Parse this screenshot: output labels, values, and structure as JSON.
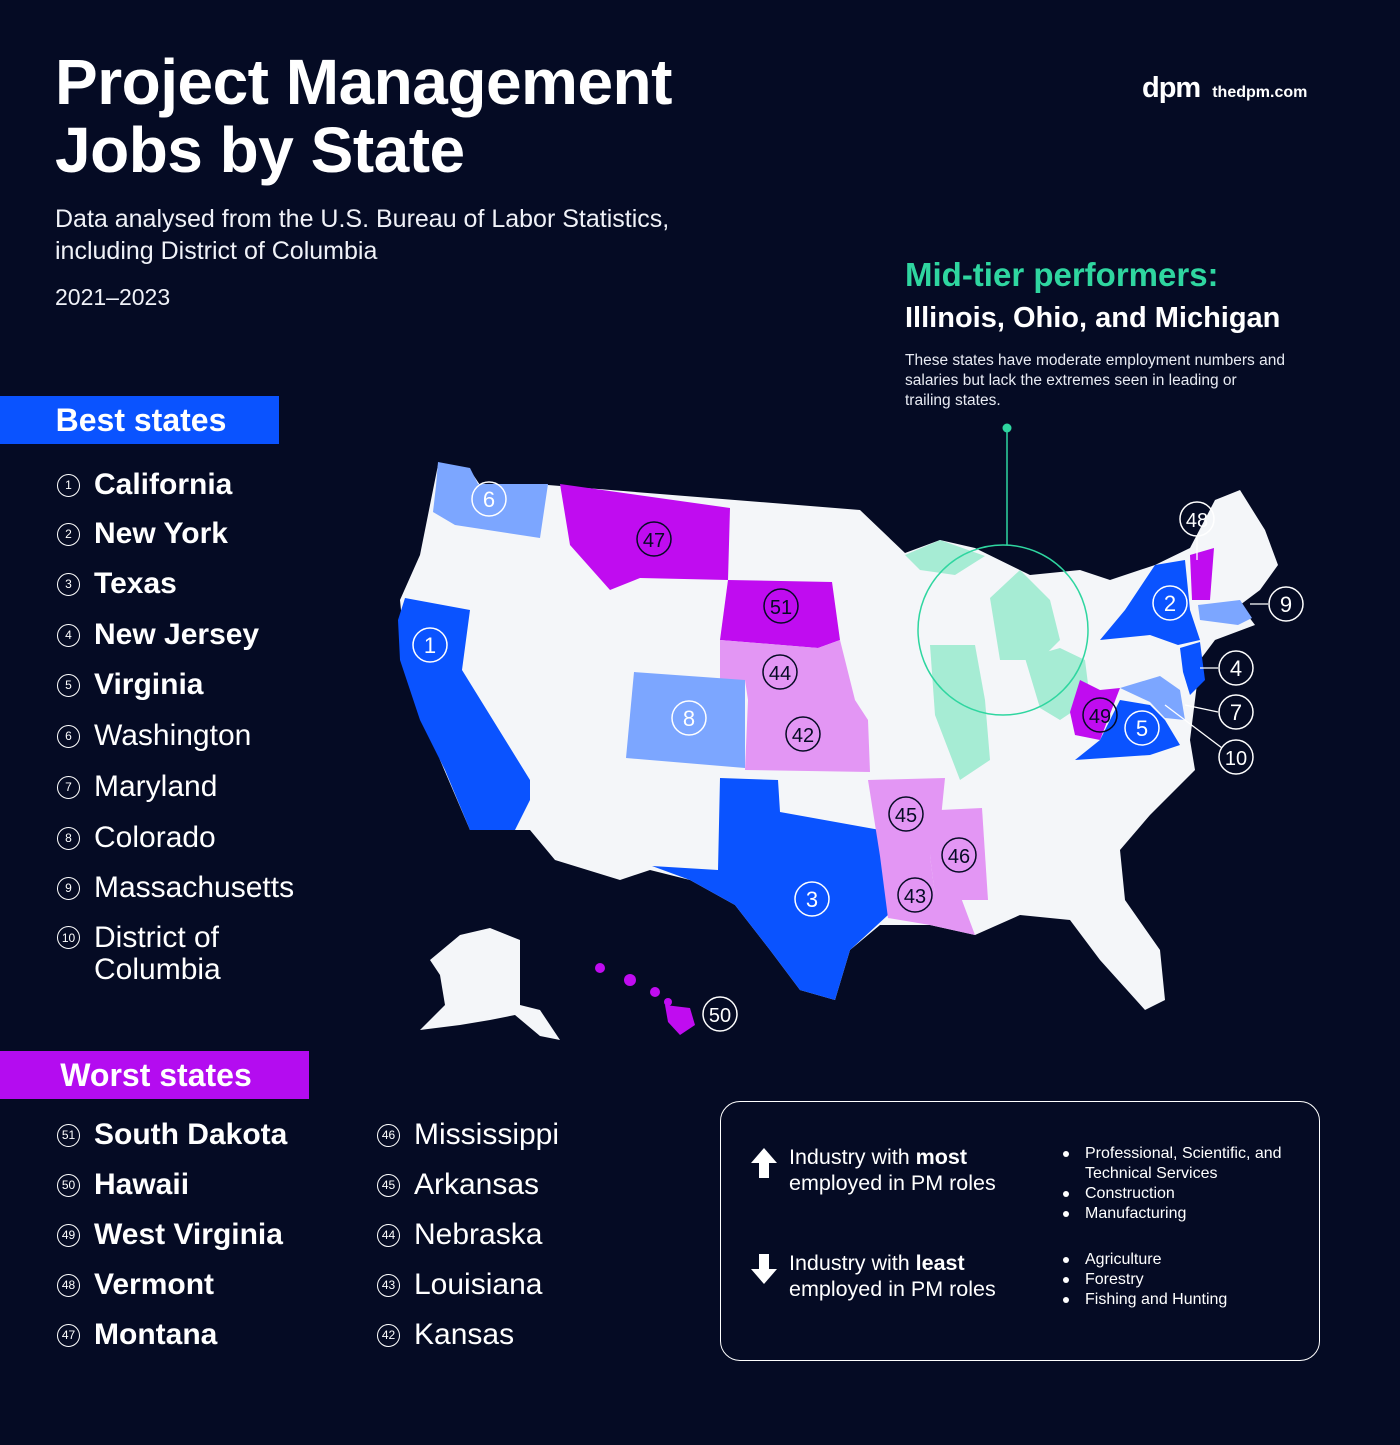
{
  "title": "Project Management Jobs by State",
  "subtitle": "Data analysed from the U.S. Bureau of Labor Statistics, including District of Columbia",
  "years": "2021–2023",
  "brand": {
    "logo": "dpm",
    "url": "thedpm.com"
  },
  "mid_tier": {
    "heading": "Mid-tier performers:",
    "states": "Illinois, Ohio, and Michigan",
    "description": "These states have moderate employment numbers and salaries but lack the extremes seen in leading or trailing states."
  },
  "best": {
    "label": "Best states",
    "items": [
      {
        "rank": "1",
        "name": "California"
      },
      {
        "rank": "2",
        "name": "New York"
      },
      {
        "rank": "3",
        "name": "Texas"
      },
      {
        "rank": "4",
        "name": "New Jersey"
      },
      {
        "rank": "5",
        "name": "Virginia"
      },
      {
        "rank": "6",
        "name": "Washington"
      },
      {
        "rank": "7",
        "name": "Maryland"
      },
      {
        "rank": "8",
        "name": "Colorado"
      },
      {
        "rank": "9",
        "name": "Massachusetts"
      },
      {
        "rank": "10",
        "name": "District of Columbia"
      }
    ]
  },
  "worst": {
    "label": "Worst states",
    "items": [
      {
        "rank": "51",
        "name": "South Dakota"
      },
      {
        "rank": "50",
        "name": "Hawaii"
      },
      {
        "rank": "49",
        "name": "West Virginia"
      },
      {
        "rank": "48",
        "name": "Vermont"
      },
      {
        "rank": "47",
        "name": "Montana"
      },
      {
        "rank": "46",
        "name": "Mississippi"
      },
      {
        "rank": "45",
        "name": "Arkansas"
      },
      {
        "rank": "44",
        "name": "Nebraska"
      },
      {
        "rank": "43",
        "name": "Louisiana"
      },
      {
        "rank": "42",
        "name": "Kansas"
      }
    ]
  },
  "industries": {
    "most": {
      "prefix": "Industry with ",
      "emphasis": "most",
      "suffix": "employed in PM roles",
      "items": [
        "Professional, Scientific, and Technical Services",
        "Construction",
        "Manufacturing"
      ]
    },
    "least": {
      "prefix": "Industry with ",
      "emphasis": "least",
      "suffix": "employed in PM roles",
      "items": [
        "Agriculture",
        "Forestry",
        "Fishing and Hunting"
      ]
    }
  },
  "colors": {
    "background": "#050b24",
    "best_top": "#0a53ff",
    "best_mid": "#7ca6ff",
    "worst_top": "#c00cf0",
    "worst_mid": "#e396f4",
    "mid_tier": "#a6ecd4",
    "base_state": "#f4f6f9",
    "mid_accent": "#2fd6a0"
  }
}
